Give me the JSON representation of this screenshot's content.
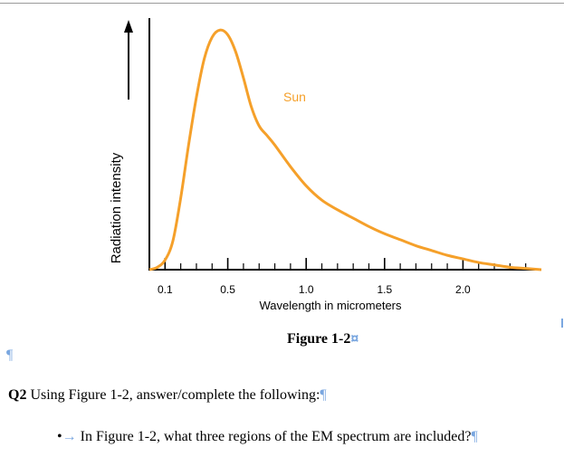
{
  "chart_data": {
    "type": "line",
    "ylabel": "Radiation intensity",
    "xlabel": "Wavelength in micrometers",
    "x_tick_labels": [
      "0.1",
      "0.5",
      "1.0",
      "1.5",
      "2.0"
    ],
    "x_ticks": [
      0.1,
      0.5,
      1.0,
      1.5,
      2.0
    ],
    "xlim": [
      0,
      2.5
    ],
    "ylim": [
      0,
      1.05
    ],
    "series": [
      {
        "name": "Sun",
        "color": "#f5a02a",
        "x": [
          0.0,
          0.05,
          0.1,
          0.15,
          0.2,
          0.25,
          0.3,
          0.35,
          0.4,
          0.45,
          0.5,
          0.55,
          0.6,
          0.65,
          0.7,
          0.75,
          0.8,
          0.9,
          1.0,
          1.1,
          1.2,
          1.3,
          1.4,
          1.5,
          1.6,
          1.7,
          1.8,
          1.9,
          2.0,
          2.1,
          2.2,
          2.3,
          2.4,
          2.5
        ],
        "y": [
          0.0,
          0.01,
          0.04,
          0.12,
          0.3,
          0.52,
          0.72,
          0.88,
          0.97,
          1.0,
          0.98,
          0.91,
          0.8,
          0.68,
          0.6,
          0.56,
          0.52,
          0.43,
          0.35,
          0.29,
          0.25,
          0.215,
          0.18,
          0.15,
          0.125,
          0.1,
          0.08,
          0.06,
          0.045,
          0.03,
          0.02,
          0.01,
          0.005,
          0.0
        ]
      }
    ]
  },
  "figure": {
    "caption": "Figure 1-2",
    "caption_mark": "¤"
  },
  "body": {
    "empty_paragraph_mark": "¶",
    "question_label": "Q2",
    "question_text": "Using Figure 1-2, answer/complete the following:",
    "question_mark": "¶",
    "bullet_symbol": "•",
    "bullet_arrow": "→",
    "bullet_text": "In Figure 1-2, what three regions of the EM spectrum are included?",
    "bullet_mark": "¶"
  },
  "colors": {
    "curve": "#f5a02a",
    "formatting_marks": "#7aa7e0"
  }
}
